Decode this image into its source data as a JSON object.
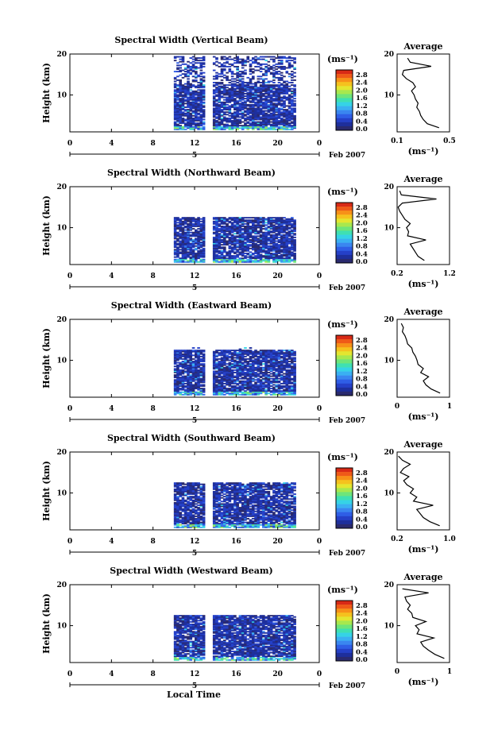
{
  "xlabel": "Local Time",
  "colorbar": {
    "unit": "(ms⁻¹)",
    "ticks": [
      "2.8",
      "2.4",
      "2.0",
      "1.6",
      "1.2",
      "0.8",
      "0.4",
      "0.0"
    ],
    "range": [
      0.0,
      3.0
    ],
    "colors": [
      "#2a2a6e",
      "#1e2f9c",
      "#2540c8",
      "#2f5ee6",
      "#3a86f0",
      "#3ab0f2",
      "#35d3e6",
      "#3fe0b2",
      "#6ee57a",
      "#a8e84e",
      "#e4e630",
      "#f5c21e",
      "#f79118",
      "#ef5a18",
      "#d82a16"
    ]
  },
  "chart_data": [
    {
      "type": "heatmap",
      "title": "Spectral Width (Vertical Beam)",
      "ylabel": "Height (km)",
      "x_ticks": [
        "0",
        "4",
        "8",
        "12",
        "16",
        "20",
        "0"
      ],
      "xlim": [
        0,
        24
      ],
      "y_ticks": [
        "20",
        "10"
      ],
      "ylim": [
        1,
        20
      ],
      "date_label": "5",
      "date_text": "Feb 2007",
      "data_hours": [
        10,
        21.6
      ],
      "gap_hours": [
        12.8,
        13.6
      ],
      "data_heights": [
        1.5,
        19.5
      ],
      "profile": {
        "title": "Average",
        "xlabel": "(ms⁻¹)",
        "x_ticks": [
          "0.1",
          "0.5"
        ],
        "xlim": [
          0.1,
          0.5
        ],
        "y_ticks": [
          "20",
          "10"
        ],
        "heights": [
          2,
          3,
          4,
          5,
          6,
          7,
          8,
          9,
          10,
          11,
          12,
          13,
          14,
          15,
          16,
          17,
          18,
          19
        ],
        "values": [
          0.42,
          0.33,
          0.3,
          0.28,
          0.27,
          0.25,
          0.26,
          0.24,
          0.23,
          0.21,
          0.24,
          0.22,
          0.17,
          0.14,
          0.15,
          0.36,
          0.2,
          0.18
        ]
      }
    },
    {
      "type": "heatmap",
      "title": "Spectral Width (Northward Beam)",
      "ylabel": "Height (km)",
      "x_ticks": [
        "0",
        "4",
        "8",
        "12",
        "16",
        "20",
        "0"
      ],
      "xlim": [
        0,
        24
      ],
      "y_ticks": [
        "20",
        "10"
      ],
      "ylim": [
        1,
        20
      ],
      "date_label": "5",
      "date_text": "Feb 2007",
      "data_hours": [
        10,
        21.6
      ],
      "gap_hours": [
        12.8,
        13.6
      ],
      "data_heights": [
        1.5,
        12.5
      ],
      "profile": {
        "title": "Average",
        "xlabel": "(ms⁻¹)",
        "x_ticks": [
          "0.2",
          "1.2"
        ],
        "xlim": [
          0.2,
          1.2
        ],
        "y_ticks": [
          "20",
          "10"
        ],
        "heights": [
          2,
          3,
          4,
          5,
          6,
          7,
          8,
          9,
          10,
          11,
          12,
          13,
          14,
          15,
          16,
          17,
          18,
          19
        ],
        "values": [
          0.72,
          0.6,
          0.55,
          0.5,
          0.45,
          0.75,
          0.4,
          0.42,
          0.38,
          0.45,
          0.35,
          0.3,
          0.25,
          0.22,
          0.3,
          0.95,
          0.28,
          0.25
        ]
      }
    },
    {
      "type": "heatmap",
      "title": "Spectral Width (Eastward Beam)",
      "ylabel": "Height (km)",
      "x_ticks": [
        "0",
        "4",
        "8",
        "12",
        "16",
        "20",
        "0"
      ],
      "xlim": [
        0,
        24
      ],
      "y_ticks": [
        "20",
        "10"
      ],
      "ylim": [
        1,
        20
      ],
      "date_label": "5",
      "date_text": "Feb 2007",
      "data_hours": [
        10,
        21.6
      ],
      "gap_hours": [
        12.8,
        13.6
      ],
      "data_heights": [
        1.5,
        13
      ],
      "profile": {
        "title": "Average",
        "xlabel": "(ms⁻¹)",
        "x_ticks": [
          "0",
          "1"
        ],
        "xlim": [
          0,
          1
        ],
        "y_ticks": [
          "20",
          "10"
        ],
        "heights": [
          2,
          3,
          4,
          5,
          6,
          7,
          8,
          9,
          10,
          11,
          12,
          13,
          14,
          15,
          16,
          17,
          18,
          19
        ],
        "values": [
          0.82,
          0.65,
          0.55,
          0.5,
          0.6,
          0.45,
          0.5,
          0.4,
          0.38,
          0.35,
          0.3,
          0.28,
          0.2,
          0.18,
          0.15,
          0.1,
          0.12,
          0.08
        ]
      }
    },
    {
      "type": "heatmap",
      "title": "Spectral Width (Southward Beam)",
      "ylabel": "Height (km)",
      "x_ticks": [
        "0",
        "4",
        "8",
        "12",
        "16",
        "20",
        "0"
      ],
      "xlim": [
        0,
        24
      ],
      "y_ticks": [
        "20",
        "10"
      ],
      "ylim": [
        1,
        20
      ],
      "date_label": "5",
      "date_text": "Feb 2007",
      "data_hours": [
        10,
        21.6
      ],
      "gap_hours": [
        12.8,
        13.6
      ],
      "data_heights": [
        1.5,
        12.5
      ],
      "profile": {
        "title": "Average",
        "xlabel": "(ms⁻¹)",
        "x_ticks": [
          "0.2",
          "1.0"
        ],
        "xlim": [
          0.2,
          1.0
        ],
        "y_ticks": [
          "20",
          "10"
        ],
        "heights": [
          2,
          3,
          4,
          5,
          6,
          7,
          8,
          9,
          10,
          11,
          12,
          13,
          14,
          15,
          16,
          17,
          18,
          19
        ],
        "values": [
          0.85,
          0.7,
          0.6,
          0.55,
          0.5,
          0.75,
          0.45,
          0.5,
          0.4,
          0.45,
          0.35,
          0.3,
          0.38,
          0.25,
          0.3,
          0.4,
          0.28,
          0.22
        ]
      }
    },
    {
      "type": "heatmap",
      "title": "Spectral Width (Westward Beam)",
      "ylabel": "Height (km)",
      "x_ticks": [
        "0",
        "4",
        "8",
        "12",
        "16",
        "20",
        "0"
      ],
      "xlim": [
        0,
        24
      ],
      "y_ticks": [
        "20",
        "10"
      ],
      "ylim": [
        1,
        20
      ],
      "date_label": "5",
      "date_text": "Feb 2007",
      "data_hours": [
        10,
        21.6
      ],
      "gap_hours": [
        12.8,
        13.6
      ],
      "data_heights": [
        1.5,
        12.5
      ],
      "profile": {
        "title": "Average",
        "xlabel": "(ms⁻¹)",
        "x_ticks": [
          "0",
          "1"
        ],
        "xlim": [
          0,
          1
        ],
        "y_ticks": [
          "20",
          "10"
        ],
        "heights": [
          2,
          3,
          4,
          5,
          6,
          7,
          8,
          9,
          10,
          11,
          12,
          13,
          14,
          15,
          16,
          17,
          18,
          19
        ],
        "values": [
          0.9,
          0.72,
          0.6,
          0.5,
          0.45,
          0.7,
          0.38,
          0.42,
          0.35,
          0.55,
          0.3,
          0.28,
          0.2,
          0.25,
          0.18,
          0.15,
          0.6,
          0.1
        ]
      }
    }
  ]
}
